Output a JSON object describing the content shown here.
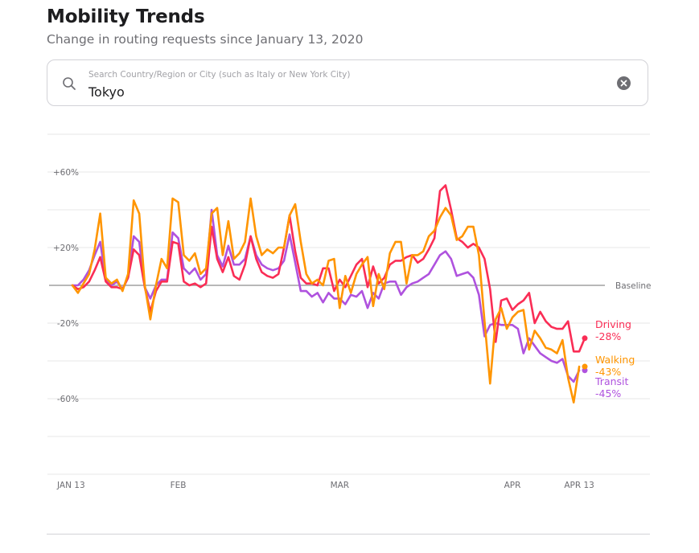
{
  "header": {
    "title": "Mobility Trends",
    "subtitle": "Change in routing requests since January 13, 2020"
  },
  "search": {
    "placeholder": "Search Country/Region or City (such as Italy or New York City)",
    "value": "Tokyo",
    "icon": "search-icon",
    "clear_icon": "clear-icon"
  },
  "chart_data": {
    "type": "line",
    "title": "",
    "xlabel": "",
    "ylabel": "",
    "ylim": [
      -100,
      80
    ],
    "yticks": [
      {
        "value": 60,
        "label": "+60%"
      },
      {
        "value": 20,
        "label": "+20%"
      },
      {
        "value": -20,
        "label": "-20%"
      },
      {
        "value": -60,
        "label": "-60%"
      }
    ],
    "gridlines": [
      80,
      60,
      40,
      20,
      -20,
      -40,
      -60,
      -80,
      -100
    ],
    "baseline": {
      "value": 0,
      "label": "Baseline"
    },
    "xticks": [
      {
        "day": 0,
        "label": "JAN 13"
      },
      {
        "day": 19,
        "label": "FEB"
      },
      {
        "day": 48,
        "label": "MAR"
      },
      {
        "day": 79,
        "label": "APR"
      },
      {
        "day": 91,
        "label": "APR 13"
      }
    ],
    "grid": true,
    "legend": "right-end-labels",
    "series": [
      {
        "name": "Driving",
        "final_label": "-28%",
        "color": "#fa2d55",
        "values": [
          0,
          -2,
          -1,
          2,
          8,
          15,
          2,
          -1,
          -1,
          -2,
          4,
          19,
          16,
          -1,
          -14,
          -3,
          2,
          2,
          23,
          22,
          2,
          0,
          1,
          -1,
          1,
          31,
          14,
          7,
          15,
          5,
          3,
          11,
          26,
          14,
          7,
          5,
          4,
          6,
          20,
          37,
          18,
          4,
          1,
          1,
          0,
          9,
          9,
          -3,
          3,
          -1,
          5,
          11,
          14,
          -1,
          10,
          1,
          4,
          11,
          13,
          13,
          15,
          16,
          12,
          14,
          19,
          25,
          50,
          53,
          40,
          25,
          23,
          20,
          22,
          20,
          14,
          -2,
          -30,
          -8,
          -7,
          -13,
          -10,
          -8,
          -4,
          -20,
          -14,
          -19,
          -22,
          -23,
          -23,
          -19,
          -35,
          -35,
          -28
        ]
      },
      {
        "name": "Walking",
        "final_label": "-43%",
        "color": "#ff9500",
        "values": [
          0,
          -4,
          1,
          6,
          19,
          38,
          4,
          1,
          3,
          -3,
          6,
          45,
          38,
          0,
          -18,
          0,
          14,
          9,
          46,
          44,
          16,
          13,
          17,
          6,
          9,
          38,
          41,
          16,
          34,
          14,
          17,
          23,
          46,
          26,
          16,
          19,
          17,
          20,
          20,
          37,
          43,
          23,
          6,
          1,
          3,
          0,
          13,
          14,
          -12,
          5,
          -4,
          6,
          11,
          15,
          -11,
          6,
          -2,
          17,
          23,
          23,
          1,
          16,
          16,
          18,
          26,
          29,
          36,
          41,
          37,
          24,
          26,
          31,
          31,
          16,
          -19,
          -52,
          -18,
          -12,
          -23,
          -17,
          -14,
          -13,
          -34,
          -24,
          -28,
          -33,
          -34,
          -36,
          -29,
          -49,
          -62,
          -43
        ]
      },
      {
        "name": "Transit",
        "final_label": "-45%",
        "color": "#af52de",
        "values": [
          0,
          0,
          3,
          8,
          16,
          23,
          3,
          0,
          2,
          -2,
          4,
          26,
          23,
          -1,
          -7,
          0,
          3,
          3,
          28,
          25,
          9,
          6,
          9,
          3,
          6,
          40,
          16,
          10,
          21,
          11,
          11,
          14,
          26,
          16,
          11,
          9,
          8,
          9,
          13,
          27,
          12,
          -3,
          -3,
          -6,
          -4,
          -9,
          -4,
          -7,
          -7,
          -10,
          -5,
          -6,
          -3,
          -12,
          -4,
          -7,
          1,
          2,
          2,
          -5,
          -1,
          1,
          2,
          4,
          6,
          11,
          16,
          18,
          14,
          5,
          6,
          7,
          4,
          -5,
          -27,
          -21,
          -20,
          -21,
          -21,
          -21,
          -23,
          -36,
          -28,
          -32,
          -36,
          -38,
          -40,
          -41,
          -39,
          -48,
          -51,
          -45
        ]
      }
    ]
  }
}
